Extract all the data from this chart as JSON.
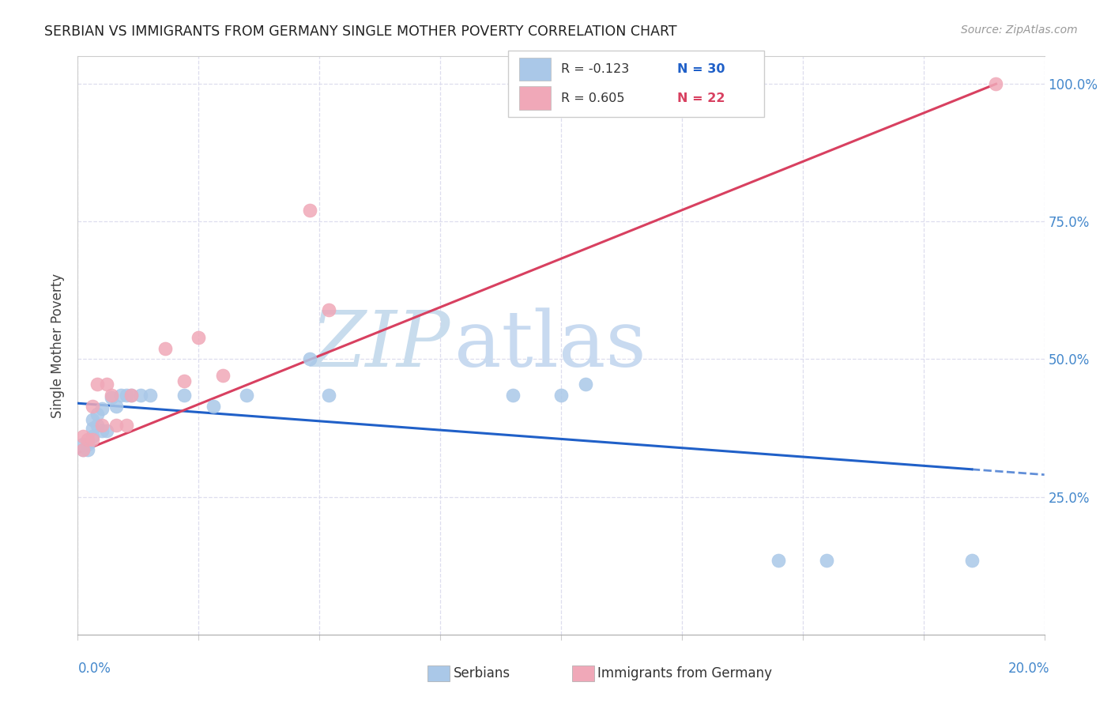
{
  "title": "SERBIAN VS IMMIGRANTS FROM GERMANY SINGLE MOTHER POVERTY CORRELATION CHART",
  "source": "Source: ZipAtlas.com",
  "ylabel": "Single Mother Poverty",
  "blue_color": "#aac8e8",
  "pink_color": "#f0a8b8",
  "blue_line_color": "#2060c8",
  "pink_line_color": "#d84060",
  "right_tick_color": "#4488cc",
  "grid_color": "#ddddee",
  "xlim": [
    0.0,
    0.2
  ],
  "ylim": [
    0.0,
    1.05
  ],
  "serbian_x": [
    0.001,
    0.001,
    0.002,
    0.002,
    0.003,
    0.003,
    0.003,
    0.004,
    0.004,
    0.005,
    0.005,
    0.006,
    0.007,
    0.007,
    0.008,
    0.009,
    0.01,
    0.012,
    0.014,
    0.022,
    0.025,
    0.03,
    0.048,
    0.052,
    0.09,
    0.1,
    0.105,
    0.145,
    0.15,
    0.185
  ],
  "serbian_y": [
    0.335,
    0.345,
    0.335,
    0.345,
    0.355,
    0.375,
    0.395,
    0.385,
    0.405,
    0.375,
    0.415,
    0.375,
    0.43,
    0.435,
    0.42,
    0.435,
    0.435,
    0.435,
    0.435,
    0.435,
    0.415,
    0.435,
    0.5,
    0.435,
    0.435,
    0.435,
    0.455,
    0.135,
    0.135,
    0.135
  ],
  "german_x": [
    0.001,
    0.002,
    0.002,
    0.003,
    0.003,
    0.004,
    0.005,
    0.006,
    0.007,
    0.008,
    0.01,
    0.011,
    0.018,
    0.022,
    0.025,
    0.03,
    0.048,
    0.052,
    0.19
  ],
  "german_y": [
    0.335,
    0.335,
    0.36,
    0.355,
    0.415,
    0.455,
    0.38,
    0.455,
    0.435,
    0.415,
    0.38,
    0.435,
    0.52,
    0.46,
    0.54,
    0.47,
    0.77,
    0.59,
    1.0
  ],
  "serbian_line_x0": 0.0,
  "serbian_line_y0": 0.42,
  "serbian_line_x1": 0.185,
  "serbian_line_y1": 0.3,
  "german_line_x0": 0.0,
  "german_line_y0": 0.33,
  "german_line_x1": 0.19,
  "german_line_y1": 1.0
}
